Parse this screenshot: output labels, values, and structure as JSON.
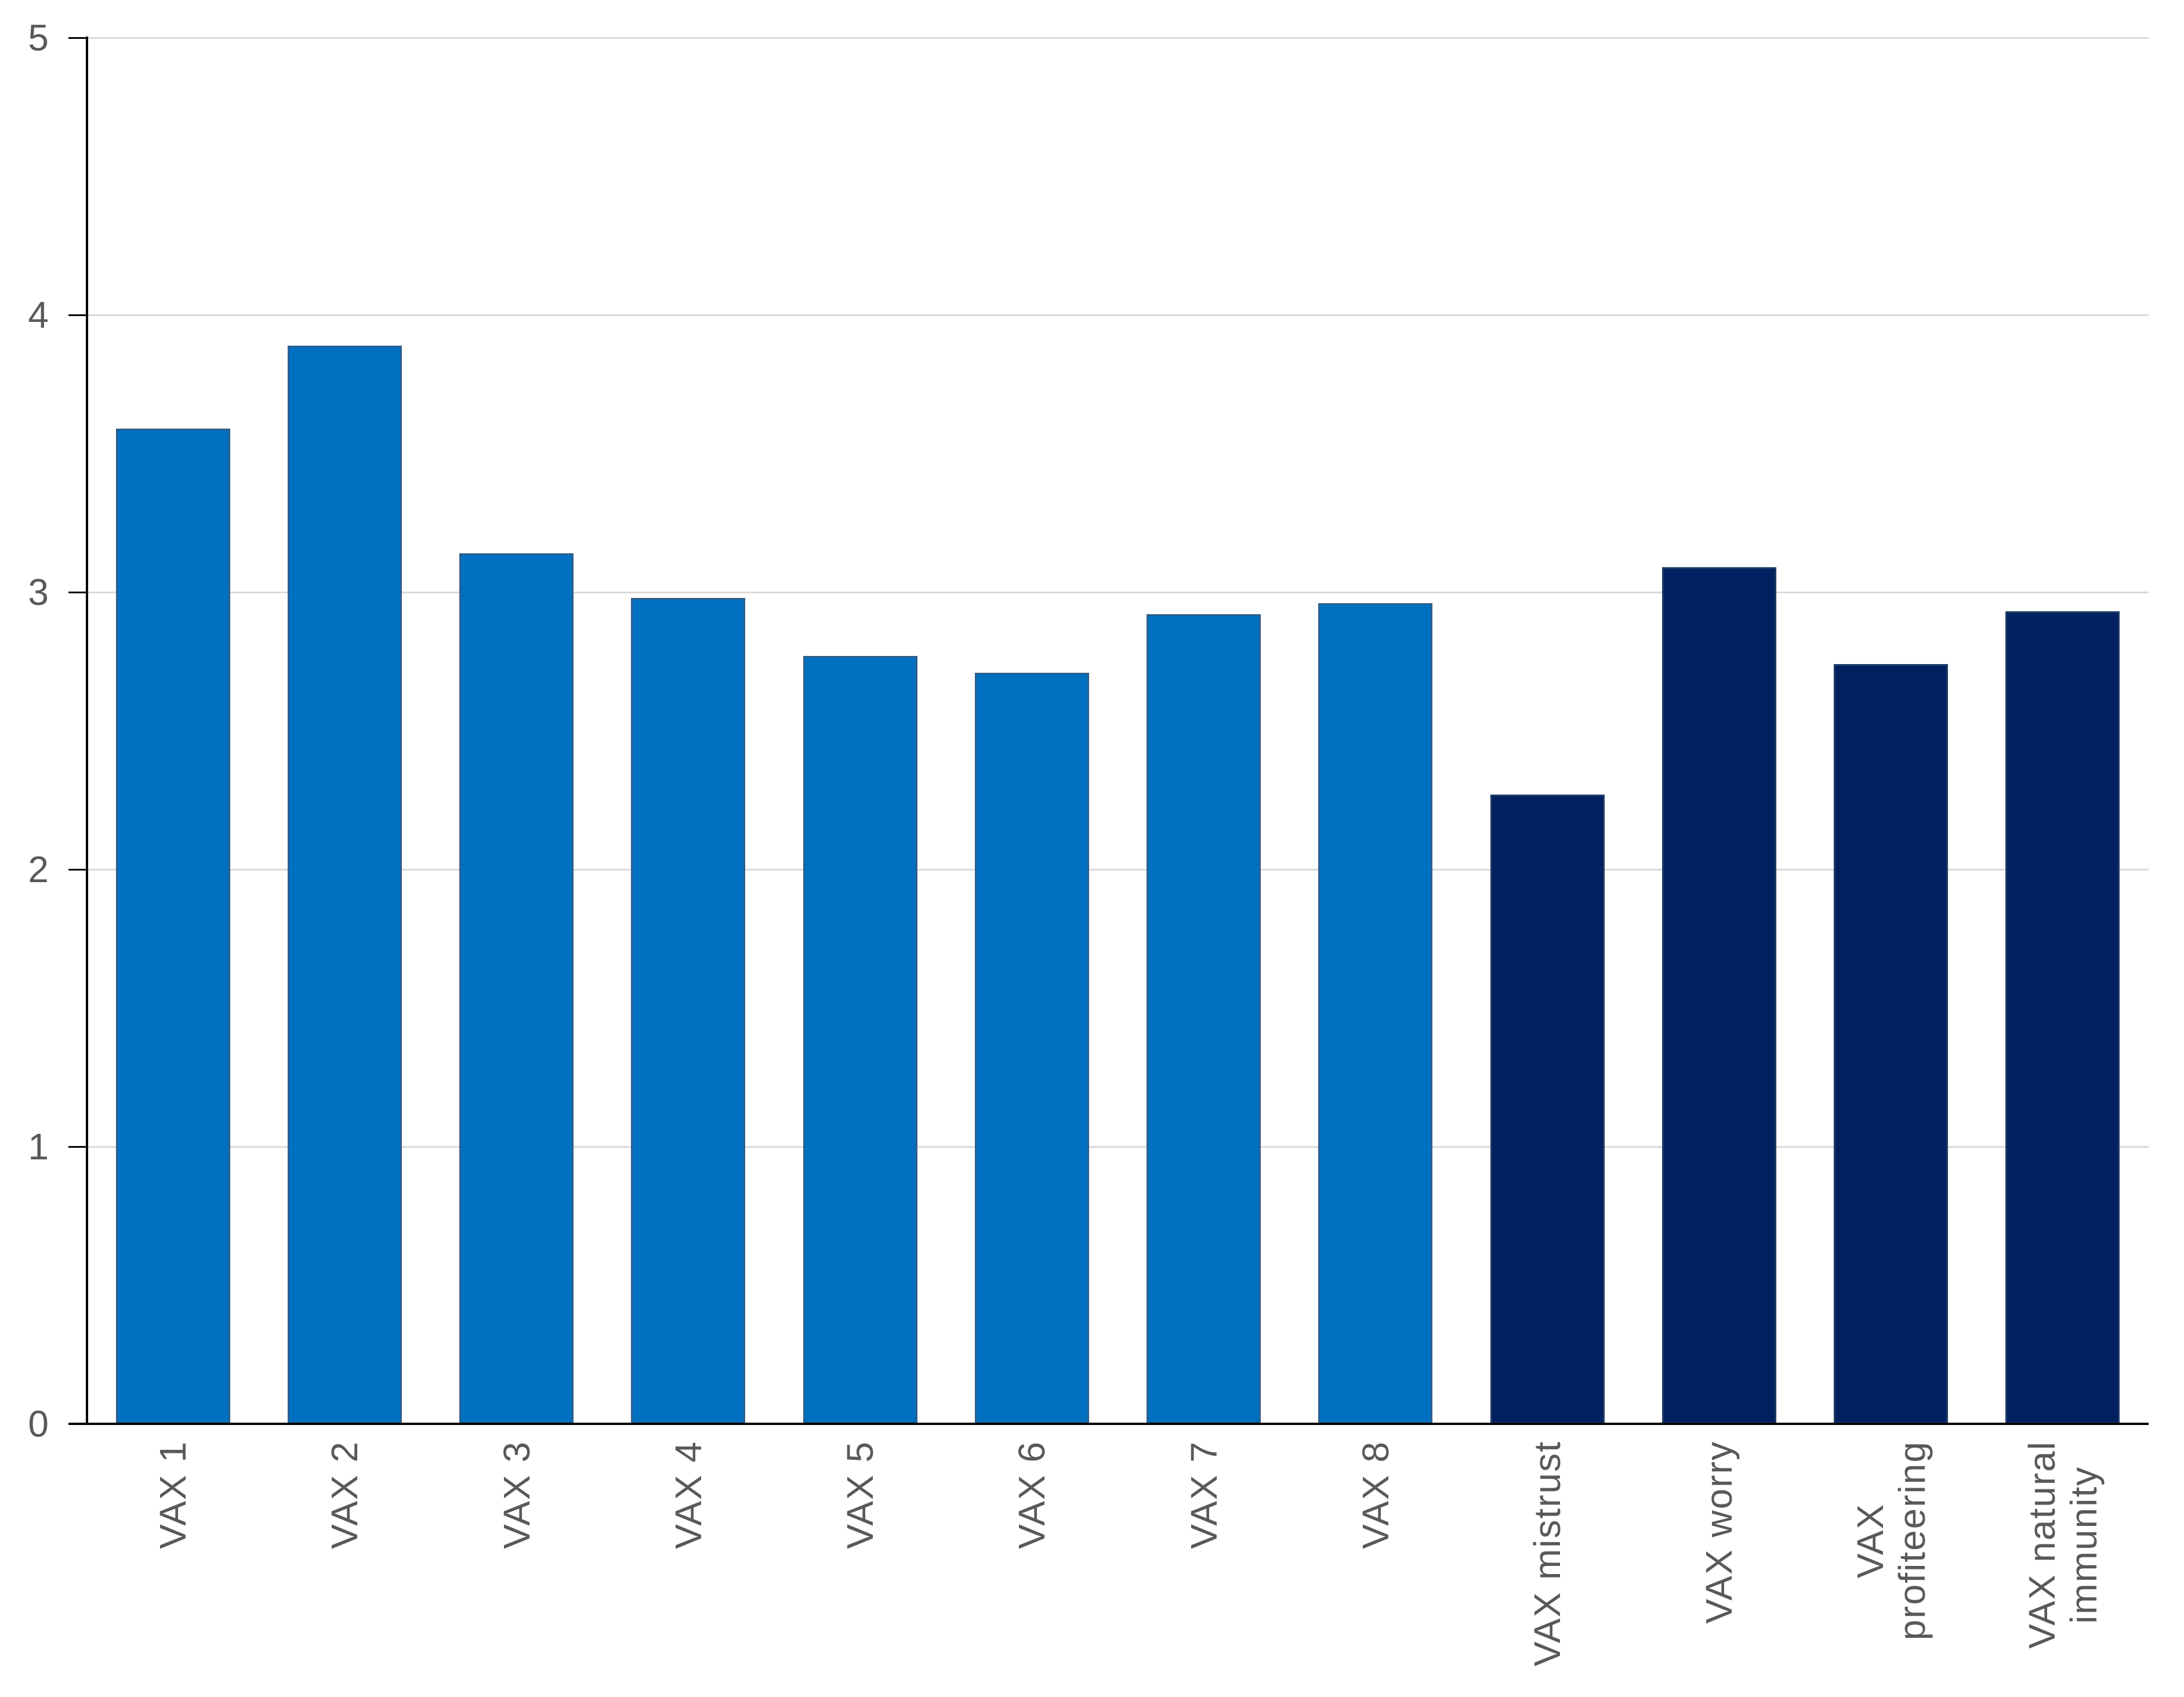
{
  "chart_data": {
    "type": "bar",
    "title": "",
    "xlabel": "",
    "ylabel": "",
    "ylim": [
      0,
      5
    ],
    "yticks": [
      "0",
      "1",
      "2",
      "3",
      "4",
      "5"
    ],
    "grid": true,
    "legend": null,
    "categories": [
      "VAX 1",
      "VAX 2",
      "VAX 3",
      "VAX 4",
      "VAX 5",
      "VAX 6",
      "VAX 7",
      "VAX 8",
      "VAX mistrust",
      "VAX worry",
      "VAX profiteering",
      "VAX natural immunity"
    ],
    "category_label_lines": [
      [
        "VAX 1"
      ],
      [
        "VAX 2"
      ],
      [
        "VAX 3"
      ],
      [
        "VAX 4"
      ],
      [
        "VAX 5"
      ],
      [
        "VAX 6"
      ],
      [
        "VAX 7"
      ],
      [
        "VAX 8"
      ],
      [
        "VAX mistrust"
      ],
      [
        "VAX worry"
      ],
      [
        "VAX",
        "profiteering"
      ],
      [
        "VAX natural",
        "immunity"
      ]
    ],
    "values": [
      3.59,
      3.89,
      3.14,
      2.98,
      2.77,
      2.71,
      2.92,
      2.96,
      2.27,
      3.09,
      2.74,
      2.93
    ],
    "bar_fill_colors": [
      "#0070C0",
      "#0070C0",
      "#0070C0",
      "#0070C0",
      "#0070C0",
      "#0070C0",
      "#0070C0",
      "#0070C0",
      "#002060",
      "#002060",
      "#002060",
      "#002060"
    ],
    "bar_border_colors": [
      "#2E5F8C",
      "#2E5F8C",
      "#2E5F8C",
      "#2E5F8C",
      "#2E5F8C",
      "#2E5F8C",
      "#2E5F8C",
      "#2E5F8C",
      "#1E3A66",
      "#1E3A66",
      "#1E3A66",
      "#1E3A66"
    ],
    "colors": {
      "light_series": "#0070C0",
      "dark_series": "#002060",
      "gridline": "#D9D9D9",
      "axis": "#000000",
      "tick_label": "#595959",
      "background": "#FFFFFF"
    }
  }
}
